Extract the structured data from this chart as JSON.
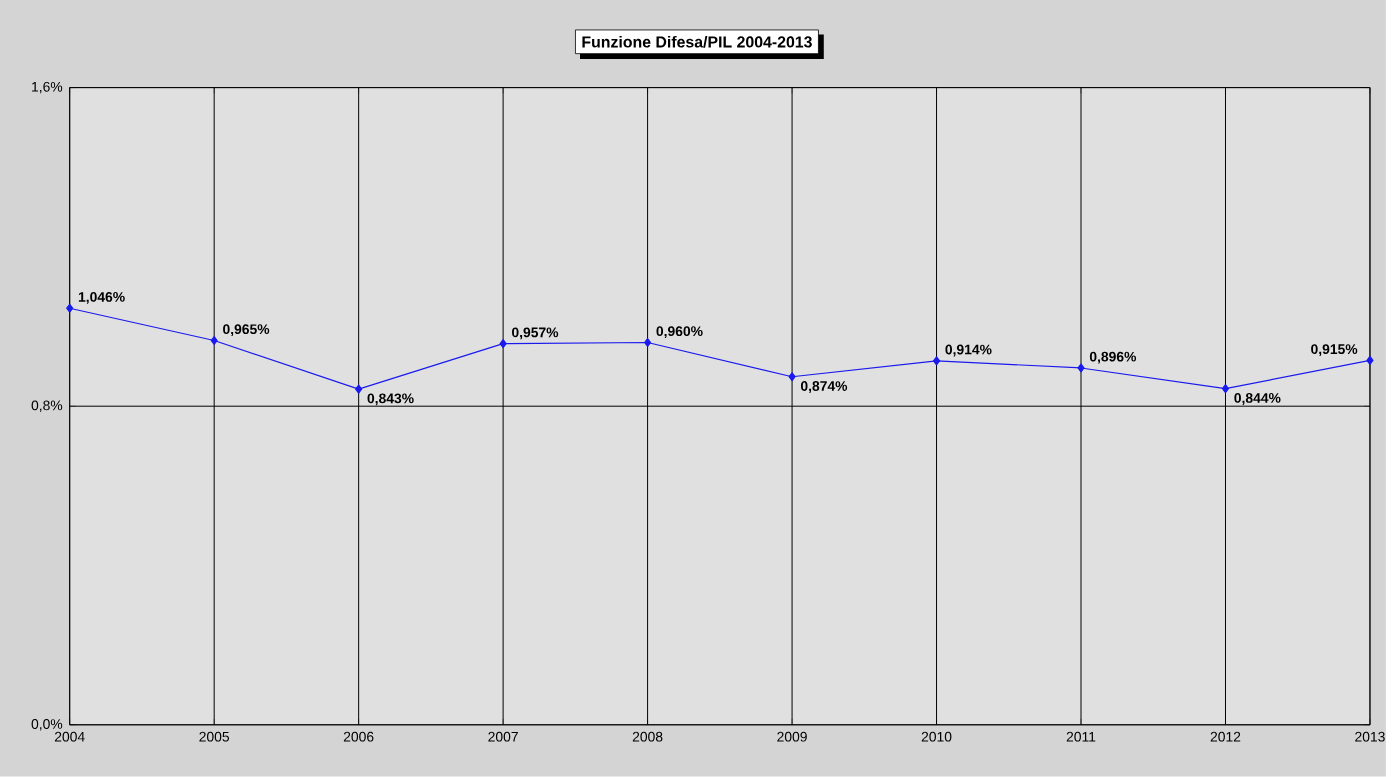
{
  "chart_data": {
    "type": "line",
    "title": "Funzione Difesa/PIL 2004-2013",
    "categories": [
      "2004",
      "2005",
      "2006",
      "2007",
      "2008",
      "2009",
      "2010",
      "2011",
      "2012",
      "2013"
    ],
    "values": [
      1.046,
      0.965,
      0.843,
      0.957,
      0.96,
      0.874,
      0.914,
      0.896,
      0.844,
      0.915
    ],
    "value_labels": [
      "1,046%",
      "0,965%",
      "0,843%",
      "0,957%",
      "0,960%",
      "0,874%",
      "0,914%",
      "0,896%",
      "0,844%",
      "0,915%"
    ],
    "color": "#1a1aee",
    "marker": "diamond",
    "line_style": "solid",
    "grid": true,
    "ylim": [
      0,
      1.6
    ],
    "yticks": [
      {
        "value": 0,
        "label": "0,0%"
      },
      {
        "value": 0.8,
        "label": "0,8%"
      },
      {
        "value": 1.6,
        "label": "1,6%"
      }
    ]
  }
}
